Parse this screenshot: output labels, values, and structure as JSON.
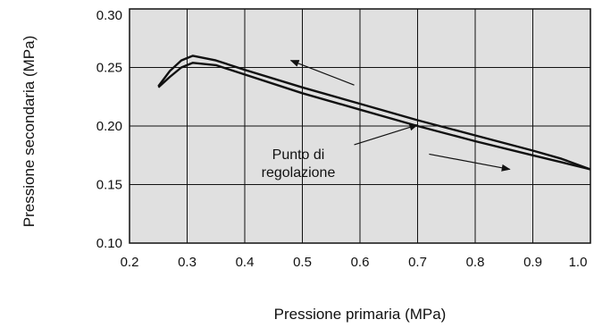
{
  "chart_data": {
    "type": "line",
    "title": "",
    "xlabel": "Pressione primaria (MPa)",
    "ylabel": "Pressione secondaria (MPa)",
    "xlim": [
      0.2,
      1.0
    ],
    "ylim": [
      0.1,
      0.3
    ],
    "x_ticks": [
      "0.2",
      "0.3",
      "0.4",
      "0.5",
      "0.6",
      "0.7",
      "0.8",
      "0.9",
      "1.0"
    ],
    "y_ticks": [
      "0.10",
      "0.15",
      "0.20",
      "0.25",
      "0.30"
    ],
    "grid": true,
    "plot_background": "#e0e0e0",
    "line_color": "#111111",
    "series": [
      {
        "x": [
          0.25,
          0.27,
          0.29,
          0.31,
          0.35,
          0.4,
          0.5,
          0.6,
          0.7,
          0.8,
          0.9,
          0.95,
          1.0
        ],
        "y": [
          0.234,
          0.247,
          0.256,
          0.26,
          0.256,
          0.248,
          0.233,
          0.219,
          0.205,
          0.192,
          0.179,
          0.172,
          0.163
        ]
      },
      {
        "x": [
          0.25,
          0.27,
          0.29,
          0.31,
          0.35,
          0.4,
          0.5,
          0.6,
          0.7,
          0.8,
          0.9,
          0.95,
          1.0
        ],
        "y": [
          0.233,
          0.242,
          0.25,
          0.254,
          0.252,
          0.244,
          0.228,
          0.214,
          0.2,
          0.187,
          0.175,
          0.169,
          0.163
        ]
      }
    ],
    "annotations": {
      "text_line1": "Punto di",
      "text_line2": "regolazione",
      "arrow_upper": {
        "from": [
          0.59,
          0.235
        ],
        "to": [
          0.48,
          0.256
        ]
      },
      "arrow_lower": {
        "from": [
          0.72,
          0.176
        ],
        "to": [
          0.86,
          0.163
        ]
      },
      "arrow_pointer": {
        "from": [
          0.59,
          0.184
        ],
        "to": [
          0.7,
          0.201
        ]
      }
    }
  }
}
